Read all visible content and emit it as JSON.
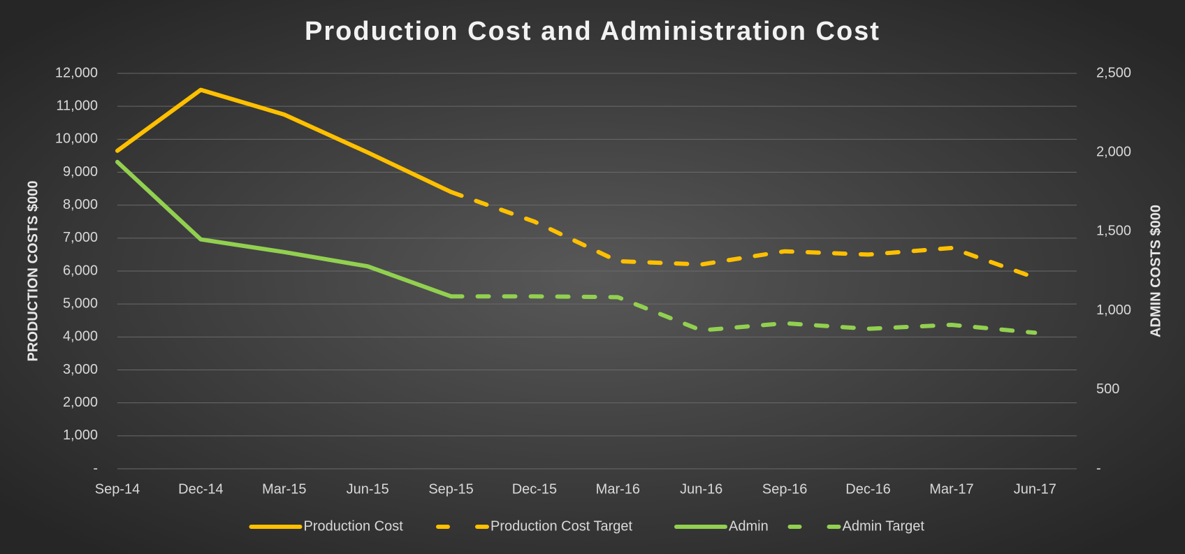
{
  "chart_data": {
    "type": "line",
    "title": "Production Cost and Administration Cost",
    "categories": [
      "Sep-14",
      "Dec-14",
      "Mar-15",
      "Jun-15",
      "Sep-15",
      "Dec-15",
      "Mar-16",
      "Jun-16",
      "Sep-16",
      "Dec-16",
      "Mar-17",
      "Jun-17"
    ],
    "y_label": "PRODUCTION COSTS $000",
    "y2_label": "ADMIN COSTS $000",
    "ylim": [
      0,
      12000
    ],
    "yticks": [
      {
        "value": 0,
        "label": "-"
      },
      {
        "value": 1000,
        "label": "1,000"
      },
      {
        "value": 2000,
        "label": "2,000"
      },
      {
        "value": 3000,
        "label": "3,000"
      },
      {
        "value": 4000,
        "label": "4,000"
      },
      {
        "value": 5000,
        "label": "5,000"
      },
      {
        "value": 6000,
        "label": "6,000"
      },
      {
        "value": 7000,
        "label": "7,000"
      },
      {
        "value": 8000,
        "label": "8,000"
      },
      {
        "value": 9000,
        "label": "9,000"
      },
      {
        "value": 10000,
        "label": "10,000"
      },
      {
        "value": 11000,
        "label": "11,000"
      },
      {
        "value": 12000,
        "label": "12,000"
      }
    ],
    "y2lim": [
      0,
      2500
    ],
    "y2ticks": [
      {
        "value": 0,
        "label": "-"
      },
      500,
      {
        "value": 1000,
        "label": "1,000"
      },
      {
        "value": 1500,
        "label": "1,500"
      },
      {
        "value": 2000,
        "label": "2,000"
      },
      {
        "value": 2500,
        "label": "2,500"
      }
    ],
    "grid": true,
    "legend": "bottom",
    "series": [
      {
        "name": "Production Cost",
        "color": "#ffc000",
        "style": "solid",
        "values": [
          9650,
          11500,
          10750,
          9600,
          8400,
          null,
          null,
          null,
          null,
          null,
          null,
          null
        ]
      },
      {
        "name": "Production Cost Target",
        "color": "#ffc000",
        "style": "dashed",
        "values": [
          null,
          null,
          null,
          null,
          8400,
          7500,
          6300,
          6200,
          6600,
          6500,
          6700,
          5800
        ]
      },
      {
        "name": "Admin",
        "color": "#92d050",
        "style": "solid",
        "axis": "y2",
        "values": [
          1940,
          1450,
          1370,
          1280,
          1090,
          null,
          null,
          null,
          null,
          null,
          null,
          null
        ]
      },
      {
        "name": "Admin Target",
        "color": "#92d050",
        "style": "dashed",
        "axis": "y2",
        "values": [
          null,
          null,
          null,
          null,
          1090,
          1090,
          1085,
          875,
          920,
          885,
          910,
          860
        ]
      }
    ]
  }
}
